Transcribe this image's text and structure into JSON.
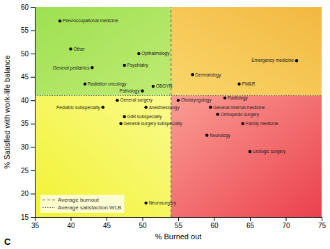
{
  "chart_data": {
    "type": "scatter",
    "xlabel": "% Burned out",
    "ylabel": "% Satisfied with work-life balance",
    "point_labels": [
      "Prev/occupational medicine",
      "Other",
      "Opthalmology",
      "Psychiatry",
      "General pediatrics",
      "Radiation oncology",
      "OBGYN",
      "Pathology",
      "General surgery",
      "Pediatric subspecialty",
      "Anesthesiology",
      "GIM subspecialty",
      "General surgery subspecialty",
      "Neurosurgery",
      "Emergency medicine",
      "Dermatology",
      "PM&R",
      "Otolaryngology",
      "Radiology",
      "General internal medicine",
      "Orthopedic surgery",
      "Family medicine",
      "Neurology",
      "Urologic surgery"
    ],
    "x": [
      38.5,
      40.0,
      49.5,
      47.5,
      43.0,
      42.0,
      51.5,
      50.0,
      46.5,
      44.5,
      50.5,
      47.5,
      47.0,
      50.5,
      71.5,
      57.0,
      63.5,
      55.0,
      61.5,
      59.5,
      60.5,
      64.0,
      59.0,
      65.0
    ],
    "values": [
      57.0,
      51.0,
      50.0,
      47.5,
      47.0,
      43.5,
      43.0,
      42.0,
      40.0,
      38.5,
      38.5,
      36.5,
      35.0,
      18.0,
      48.5,
      45.5,
      43.5,
      40.0,
      40.5,
      38.5,
      37.0,
      35.0,
      32.5,
      29.0
    ],
    "color": "#000000",
    "marker": "circle",
    "reference_lines": [
      {
        "name": "Average burnout",
        "axis": "x",
        "value": 54.0,
        "line_style": "dashed",
        "color": "#555555"
      },
      {
        "name": "Average satisfaction WLB",
        "axis": "y",
        "value": 41.0,
        "line_style": "dotted",
        "color": "#555555"
      }
    ],
    "quadrants": [
      {
        "position": "top-left",
        "colors": [
          "#9ee052",
          "#bfeb73"
        ]
      },
      {
        "position": "top-right",
        "colors": [
          "#f2b840",
          "#fad66b"
        ]
      },
      {
        "position": "bottom-left",
        "colors": [
          "#f2f233",
          "#fafa8c"
        ]
      },
      {
        "position": "bottom-right",
        "colors": [
          "#eb404d",
          "#fa9e94"
        ]
      }
    ],
    "legend": "lower left",
    "annotations": [
      "C"
    ],
    "xlim": [
      35,
      75
    ],
    "ylim": [
      15,
      60
    ],
    "xticks": [
      35,
      40,
      45,
      50,
      55,
      60,
      65,
      70,
      75
    ],
    "yticks": [
      15,
      20,
      25,
      30,
      35,
      40,
      45,
      50,
      55,
      60
    ],
    "grid": false
  }
}
